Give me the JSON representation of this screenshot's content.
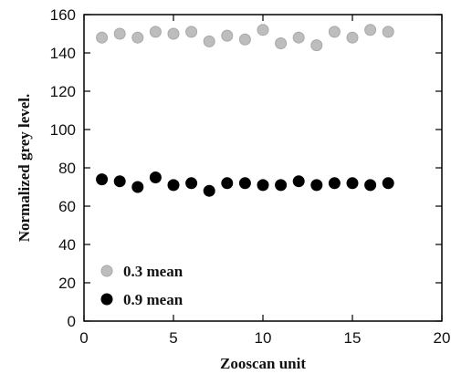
{
  "chart_data": {
    "type": "scatter",
    "title": "",
    "xlabel": "Zooscan unit",
    "ylabel": "Normalized grey level.",
    "xlim": [
      0,
      20
    ],
    "ylim": [
      0,
      160
    ],
    "xticks": [
      0,
      5,
      10,
      15,
      20
    ],
    "yticks": [
      0,
      20,
      40,
      60,
      80,
      100,
      120,
      140,
      160
    ],
    "grid": false,
    "legend_position": "bottom-left",
    "series": [
      {
        "name": "0.3 mean",
        "color": "#bdbdbd",
        "x": [
          1,
          2,
          3,
          4,
          5,
          6,
          7,
          8,
          9,
          10,
          11,
          12,
          13,
          14,
          15,
          16,
          17
        ],
        "y": [
          148,
          150,
          148,
          151,
          150,
          151,
          146,
          149,
          147,
          152,
          145,
          148,
          144,
          151,
          148,
          152,
          151
        ]
      },
      {
        "name": "0.9 mean",
        "color": "#000000",
        "x": [
          1,
          2,
          3,
          4,
          5,
          6,
          7,
          8,
          9,
          10,
          11,
          12,
          13,
          14,
          15,
          16,
          17
        ],
        "y": [
          74,
          73,
          70,
          75,
          71,
          72,
          68,
          72,
          72,
          71,
          71,
          73,
          71,
          72,
          72,
          71,
          72
        ]
      }
    ]
  }
}
